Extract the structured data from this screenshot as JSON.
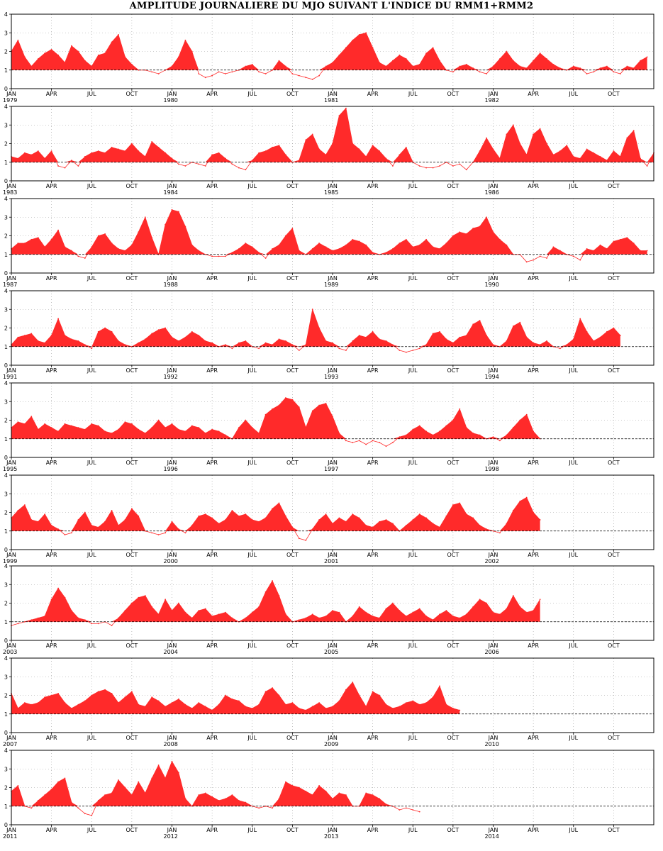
{
  "title": "AMPLITUDE JOURNALIERE DU MJO SUIVANT L'INDICE DU RMM1+RMM2",
  "colors": {
    "fill": "#ff2a2a",
    "line": "#ff2a2a",
    "threshold": "#000000",
    "grid": "#999999",
    "frame": "#000000"
  },
  "month_labels": [
    "JAN",
    "APR",
    "JUL",
    "OCT"
  ],
  "y_tick_labels": [
    "0",
    "1",
    "2",
    "3",
    "4"
  ],
  "chart_data": {
    "type": "area",
    "title": "AMPLITUDE JOURNALIERE DU MJO SUIVANT L'INDICE DU RMM1+RMM2",
    "xlabel": "",
    "ylabel": "",
    "ylim": [
      0,
      4
    ],
    "threshold": 1,
    "grid": true,
    "value_resolution": "approximate 15-day means read from the plot",
    "panels": [
      {
        "years": [
          "1979",
          "1980",
          "1981",
          "1982"
        ],
        "values": [
          2.0,
          2.6,
          1.7,
          1.2,
          1.6,
          1.9,
          2.1,
          1.8,
          1.4,
          2.3,
          2.0,
          1.5,
          1.2,
          1.8,
          1.9,
          2.5,
          2.9,
          1.7,
          1.3,
          1.0,
          1.0,
          0.9,
          0.8,
          1.0,
          1.2,
          1.7,
          2.6,
          2.0,
          0.8,
          0.6,
          0.7,
          0.9,
          0.8,
          0.9,
          1.0,
          1.2,
          1.3,
          0.9,
          0.8,
          1.0,
          1.5,
          1.2,
          0.8,
          0.7,
          0.6,
          0.5,
          0.7,
          1.2,
          1.4,
          1.8,
          2.2,
          2.6,
          2.9,
          3.0,
          2.2,
          1.4,
          1.2,
          1.5,
          1.8,
          1.6,
          1.2,
          1.3,
          1.9,
          2.2,
          1.5,
          1.0,
          0.9,
          1.2,
          1.3,
          1.1,
          0.9,
          0.8,
          1.2,
          1.6,
          2.0,
          1.5,
          1.2,
          1.1,
          1.5,
          1.9,
          1.6,
          1.3,
          1.1,
          1.0,
          1.2,
          1.1,
          0.8,
          0.9,
          1.1,
          1.2,
          0.9,
          0.8,
          1.2,
          1.1,
          1.5,
          1.7
        ]
      },
      {
        "years": [
          "1983",
          "1984",
          "1985",
          "1986"
        ],
        "values": [
          1.3,
          1.2,
          1.5,
          1.4,
          1.6,
          1.2,
          1.6,
          0.8,
          0.7,
          1.1,
          0.8,
          1.3,
          1.5,
          1.6,
          1.5,
          1.8,
          1.7,
          1.6,
          2.0,
          1.6,
          1.3,
          2.1,
          1.8,
          1.5,
          1.2,
          0.9,
          0.8,
          1.0,
          0.9,
          0.8,
          1.4,
          1.5,
          1.2,
          0.9,
          0.7,
          0.6,
          1.1,
          1.5,
          1.6,
          1.8,
          1.9,
          1.4,
          1.0,
          1.1,
          2.2,
          2.5,
          1.7,
          1.4,
          2.0,
          3.5,
          3.9,
          2.0,
          1.7,
          1.3,
          1.9,
          1.6,
          1.2,
          0.8,
          1.4,
          1.8,
          1.0,
          0.8,
          0.7,
          0.7,
          0.8,
          1.0,
          0.8,
          0.9,
          0.6,
          1.0,
          1.6,
          2.3,
          1.7,
          1.2,
          2.5,
          3.0,
          2.0,
          1.4,
          2.5,
          2.8,
          2.0,
          1.4,
          1.6,
          1.9,
          1.3,
          1.2,
          1.7,
          1.5,
          1.3,
          1.1,
          1.6,
          1.3,
          2.3,
          2.7,
          1.2,
          0.8,
          1.5
        ]
      },
      {
        "years": [
          "1987",
          "1988",
          "1989",
          "1990"
        ],
        "values": [
          1.3,
          1.6,
          1.6,
          1.8,
          1.9,
          1.4,
          1.8,
          2.3,
          1.4,
          1.2,
          0.9,
          0.8,
          1.4,
          2.0,
          2.1,
          1.6,
          1.3,
          1.2,
          1.5,
          2.2,
          3.0,
          1.9,
          1.0,
          2.6,
          3.4,
          3.3,
          2.5,
          1.5,
          1.2,
          1.0,
          0.9,
          0.9,
          0.9,
          1.1,
          1.3,
          1.6,
          1.4,
          1.1,
          0.8,
          1.3,
          1.5,
          2.0,
          2.4,
          1.2,
          1.0,
          1.3,
          1.6,
          1.4,
          1.2,
          1.3,
          1.5,
          1.8,
          1.7,
          1.5,
          1.1,
          1.0,
          1.1,
          1.3,
          1.6,
          1.8,
          1.4,
          1.5,
          1.8,
          1.4,
          1.3,
          1.6,
          2.0,
          2.2,
          2.1,
          2.4,
          2.5,
          3.0,
          2.2,
          1.8,
          1.5,
          1.0,
          1.0,
          0.6,
          0.7,
          0.9,
          0.8,
          1.4,
          1.2,
          1.0,
          0.9,
          0.7,
          1.3,
          1.2,
          1.5,
          1.3,
          1.7,
          1.8,
          1.9,
          1.6,
          1.2,
          1.2
        ]
      },
      {
        "years": [
          "1991",
          "1992",
          "1993",
          "1994"
        ],
        "values": [
          1.1,
          1.5,
          1.6,
          1.7,
          1.3,
          1.2,
          1.6,
          2.5,
          1.6,
          1.4,
          1.3,
          1.1,
          0.9,
          1.8,
          2.0,
          1.8,
          1.3,
          1.1,
          1.0,
          1.2,
          1.4,
          1.7,
          1.9,
          2.0,
          1.5,
          1.3,
          1.5,
          1.8,
          1.6,
          1.3,
          1.2,
          1.0,
          1.1,
          0.9,
          1.2,
          1.3,
          1.0,
          0.9,
          1.2,
          1.1,
          1.4,
          1.3,
          1.1,
          0.8,
          1.1,
          3.0,
          2.0,
          1.3,
          1.2,
          0.9,
          0.8,
          1.3,
          1.6,
          1.5,
          1.8,
          1.4,
          1.3,
          1.1,
          0.8,
          0.7,
          0.8,
          0.9,
          1.1,
          1.7,
          1.8,
          1.4,
          1.2,
          1.5,
          1.6,
          2.2,
          2.4,
          1.6,
          1.1,
          1.0,
          1.3,
          2.1,
          2.3,
          1.5,
          1.2,
          1.1,
          1.3,
          1.0,
          0.9,
          1.1,
          1.4,
          2.5,
          1.8,
          1.3,
          1.5,
          1.8,
          2.0,
          1.6
        ]
      },
      {
        "years": [
          "1995",
          "1996",
          "1997",
          "1998"
        ],
        "values": [
          1.6,
          1.9,
          1.8,
          2.2,
          1.5,
          1.8,
          1.6,
          1.4,
          1.8,
          1.7,
          1.6,
          1.5,
          1.8,
          1.7,
          1.4,
          1.3,
          1.5,
          1.9,
          1.8,
          1.5,
          1.3,
          1.6,
          2.0,
          1.6,
          1.8,
          1.5,
          1.4,
          1.7,
          1.6,
          1.3,
          1.5,
          1.4,
          1.2,
          1.0,
          1.6,
          2.0,
          1.6,
          1.3,
          2.3,
          2.6,
          2.8,
          3.2,
          3.1,
          2.7,
          1.6,
          2.5,
          2.8,
          2.9,
          2.2,
          1.3,
          0.9,
          0.8,
          0.9,
          0.7,
          0.9,
          0.8,
          0.6,
          0.8,
          1.1,
          1.2,
          1.5,
          1.7,
          1.4,
          1.2,
          1.4,
          1.7,
          2.0,
          2.6,
          1.6,
          1.3,
          1.2,
          1.0,
          1.1,
          0.9,
          1.2,
          1.6,
          2.0,
          2.3,
          1.4,
          1.0
        ]
      },
      {
        "years": [
          "1999",
          "2000",
          "2001",
          "2002"
        ],
        "values": [
          1.7,
          2.1,
          2.4,
          1.6,
          1.5,
          1.9,
          1.3,
          1.1,
          0.8,
          0.9,
          1.6,
          2.0,
          1.3,
          1.2,
          1.5,
          2.1,
          1.3,
          1.6,
          2.2,
          1.8,
          1.0,
          0.9,
          0.8,
          0.9,
          1.5,
          1.1,
          0.9,
          1.3,
          1.8,
          1.9,
          1.7,
          1.4,
          1.6,
          2.1,
          1.8,
          1.9,
          1.6,
          1.5,
          1.7,
          2.2,
          2.5,
          1.8,
          1.2,
          0.6,
          0.5,
          1.1,
          1.6,
          1.9,
          1.4,
          1.7,
          1.5,
          1.9,
          1.7,
          1.3,
          1.2,
          1.5,
          1.6,
          1.4,
          1.0,
          1.3,
          1.6,
          1.9,
          1.7,
          1.4,
          1.2,
          1.8,
          2.4,
          2.5,
          1.9,
          1.7,
          1.3,
          1.1,
          1.0,
          0.9,
          1.4,
          2.1,
          2.6,
          2.8,
          2.0,
          1.6
        ]
      },
      {
        "years": [
          "2003",
          "2004",
          "2005",
          "2006"
        ],
        "values": [
          0.8,
          0.9,
          1.0,
          1.1,
          1.2,
          1.3,
          2.2,
          2.8,
          2.3,
          1.6,
          1.2,
          1.1,
          0.9,
          0.9,
          1.0,
          0.8,
          1.2,
          1.6,
          2.0,
          2.3,
          2.4,
          1.8,
          1.4,
          2.2,
          1.6,
          2.0,
          1.5,
          1.2,
          1.6,
          1.7,
          1.3,
          1.4,
          1.5,
          1.2,
          1.0,
          1.2,
          1.5,
          1.8,
          2.6,
          3.2,
          2.4,
          1.4,
          1.0,
          1.1,
          1.2,
          1.4,
          1.2,
          1.3,
          1.6,
          1.5,
          1.0,
          1.3,
          1.8,
          1.5,
          1.3,
          1.2,
          1.7,
          2.0,
          1.6,
          1.3,
          1.5,
          1.7,
          1.3,
          1.1,
          1.4,
          1.6,
          1.3,
          1.2,
          1.4,
          1.8,
          2.2,
          2.0,
          1.5,
          1.4,
          1.7,
          2.4,
          1.8,
          1.5,
          1.6,
          2.2
        ]
      },
      {
        "years": [
          "2007",
          "2008",
          "2009",
          "2010"
        ],
        "values": [
          2.1,
          1.3,
          1.6,
          1.5,
          1.6,
          1.9,
          2.0,
          2.1,
          1.6,
          1.3,
          1.5,
          1.7,
          2.0,
          2.2,
          2.3,
          2.1,
          1.6,
          1.9,
          2.2,
          1.5,
          1.4,
          1.9,
          1.7,
          1.4,
          1.6,
          1.8,
          1.5,
          1.3,
          1.6,
          1.4,
          1.2,
          1.5,
          2.0,
          1.8,
          1.7,
          1.4,
          1.3,
          1.5,
          2.2,
          2.4,
          2.0,
          1.5,
          1.6,
          1.3,
          1.2,
          1.4,
          1.6,
          1.3,
          1.4,
          1.7,
          2.3,
          2.7,
          2.0,
          1.4,
          2.2,
          2.0,
          1.5,
          1.3,
          1.4,
          1.6,
          1.7,
          1.5,
          1.6,
          1.9,
          2.5,
          1.5,
          1.3,
          1.2
        ]
      },
      {
        "years": [
          "2011",
          "2012",
          "2013",
          "2014"
        ],
        "values": [
          1.8,
          2.1,
          1.0,
          0.9,
          1.3,
          1.6,
          1.9,
          2.3,
          2.5,
          1.2,
          0.9,
          0.6,
          0.5,
          1.3,
          1.6,
          1.7,
          2.4,
          2.0,
          1.6,
          2.3,
          1.7,
          2.5,
          3.2,
          2.5,
          3.4,
          2.8,
          1.4,
          1.0,
          1.6,
          1.7,
          1.5,
          1.3,
          1.4,
          1.6,
          1.3,
          1.2,
          1.0,
          0.9,
          1.0,
          0.9,
          1.4,
          2.3,
          2.1,
          2.0,
          1.8,
          1.6,
          2.1,
          1.8,
          1.4,
          1.7,
          1.6,
          1.0,
          1.0,
          1.7,
          1.6,
          1.4,
          1.1,
          1.0,
          0.8,
          0.9,
          0.8,
          0.7
        ]
      }
    ]
  }
}
